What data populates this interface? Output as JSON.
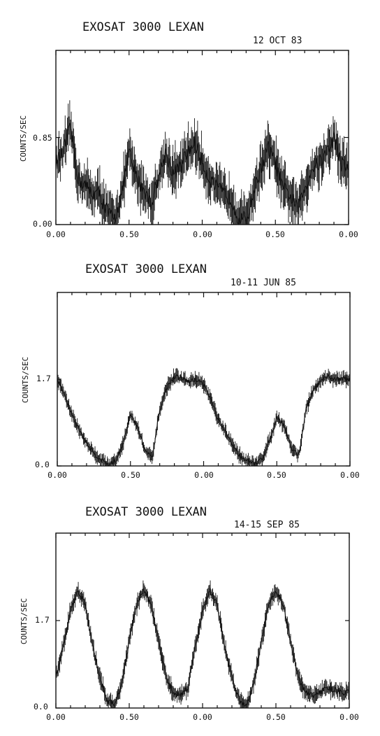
{
  "figure": {
    "panels": [
      {
        "title": "EXOSAT  3000 LEXAN",
        "date": "12 OCT 83",
        "ylabel": "COUNTS/SEC",
        "ytick_labels": [
          "0.00",
          "0.85"
        ],
        "xtick_labels": [
          "0.00",
          "0.50",
          "0.00",
          "0.50",
          "0.00"
        ]
      },
      {
        "title": "EXOSAT  3000 LEXAN",
        "date": "10-11 JUN 85",
        "ylabel": "COUNTS/SEC",
        "ytick_labels": [
          "0.0",
          "1.7"
        ],
        "xtick_labels": [
          "0.00",
          "0.50",
          "0.00",
          "0.50",
          "0.00"
        ]
      },
      {
        "title": "EXOSAT  3000 LEXAN",
        "date": "14-15 SEP 85",
        "ylabel": "COUNTS/SEC",
        "ytick_labels": [
          "0.0",
          "1.7"
        ],
        "xtick_labels": [
          "0.00",
          "0.50",
          "0.00",
          "0.50",
          "0.00"
        ]
      }
    ]
  },
  "chart_data": [
    {
      "type": "line",
      "title": "EXOSAT  3000 LEXAN",
      "subtitle": "12 OCT 83",
      "ylabel": "COUNTS/SEC",
      "x_axis": "phase, two cycles (0.0-2.0)",
      "xlim": [
        0,
        2
      ],
      "ylim": [
        0,
        1.7
      ],
      "y_ticks": [
        0,
        0.85
      ],
      "x": [
        0,
        0.05,
        0.1,
        0.15,
        0.2,
        0.25,
        0.3,
        0.35,
        0.4,
        0.45,
        0.5,
        0.55,
        0.6,
        0.65,
        0.7,
        0.75,
        0.8,
        0.85,
        0.9,
        0.95,
        1.0,
        1.05,
        1.1,
        1.15,
        1.2,
        1.25,
        1.3,
        1.35,
        1.4,
        1.45,
        1.5,
        1.55,
        1.6,
        1.65,
        1.7,
        1.75,
        1.8,
        1.85,
        1.9,
        1.95,
        2.0
      ],
      "y": [
        0.6,
        0.7,
        0.95,
        0.45,
        0.38,
        0.3,
        0.3,
        0.12,
        0.05,
        0.3,
        0.7,
        0.45,
        0.35,
        0.2,
        0.45,
        0.7,
        0.5,
        0.55,
        0.7,
        0.8,
        0.6,
        0.45,
        0.35,
        0.3,
        0.25,
        0.06,
        0.05,
        0.3,
        0.55,
        0.75,
        0.6,
        0.35,
        0.28,
        0.15,
        0.35,
        0.55,
        0.6,
        0.7,
        0.85,
        0.6,
        0.55
      ],
      "error_amplitude": 0.2
    },
    {
      "type": "line",
      "title": "EXOSAT  3000 LEXAN",
      "subtitle": "10-11 JUN 85",
      "ylabel": "COUNTS/SEC",
      "x_axis": "phase, two cycles (0.0-2.0)",
      "xlim": [
        0,
        2
      ],
      "ylim": [
        0,
        3.4
      ],
      "y_ticks": [
        0,
        1.7
      ],
      "x": [
        0,
        0.05,
        0.1,
        0.15,
        0.2,
        0.25,
        0.3,
        0.35,
        0.4,
        0.45,
        0.5,
        0.55,
        0.6,
        0.65,
        0.7,
        0.75,
        0.8,
        0.85,
        0.9,
        0.95,
        1.0,
        1.05,
        1.1,
        1.15,
        1.2,
        1.25,
        1.3,
        1.35,
        1.4,
        1.45,
        1.5,
        1.55,
        1.6,
        1.65,
        1.7,
        1.75,
        1.8,
        1.85,
        1.9,
        1.95,
        2.0
      ],
      "y": [
        1.7,
        1.4,
        1.0,
        0.7,
        0.45,
        0.25,
        0.12,
        0.03,
        0.1,
        0.45,
        1.0,
        0.75,
        0.3,
        0.15,
        1.1,
        1.55,
        1.75,
        1.72,
        1.65,
        1.7,
        1.6,
        1.3,
        0.9,
        0.65,
        0.4,
        0.2,
        0.1,
        0.03,
        0.15,
        0.5,
        0.95,
        0.8,
        0.35,
        0.2,
        1.1,
        1.5,
        1.65,
        1.75,
        1.7,
        1.72,
        1.68
      ],
      "error_amplitude": 0.12
    },
    {
      "type": "line",
      "title": "EXOSAT  3000 LEXAN",
      "subtitle": "14-15 SEP 85",
      "ylabel": "COUNTS/SEC",
      "x_axis": "phase, two cycles (0.0-2.0)",
      "xlim": [
        0,
        2
      ],
      "ylim": [
        0,
        3.4
      ],
      "y_ticks": [
        0,
        1.7
      ],
      "x": [
        0,
        0.05,
        0.1,
        0.15,
        0.2,
        0.25,
        0.3,
        0.35,
        0.4,
        0.45,
        0.5,
        0.55,
        0.6,
        0.65,
        0.7,
        0.75,
        0.8,
        0.85,
        0.9,
        0.95,
        1.0,
        1.05,
        1.1,
        1.15,
        1.2,
        1.25,
        1.3,
        1.35,
        1.4,
        1.45,
        1.5,
        1.55,
        1.6,
        1.65,
        1.7,
        1.75,
        1.8,
        1.85,
        1.9,
        1.95,
        2.0
      ],
      "y": [
        0.6,
        1.2,
        1.9,
        2.3,
        2.0,
        1.2,
        0.6,
        0.15,
        0.05,
        0.5,
        1.3,
        2.0,
        2.3,
        2.0,
        1.3,
        0.6,
        0.3,
        0.25,
        0.4,
        1.2,
        1.9,
        2.3,
        2.0,
        1.2,
        0.6,
        0.15,
        0.05,
        0.5,
        1.3,
        2.0,
        2.3,
        2.0,
        1.3,
        0.6,
        0.3,
        0.25,
        0.3,
        0.4,
        0.35,
        0.3,
        0.3
      ],
      "error_amplitude": 0.15
    }
  ]
}
